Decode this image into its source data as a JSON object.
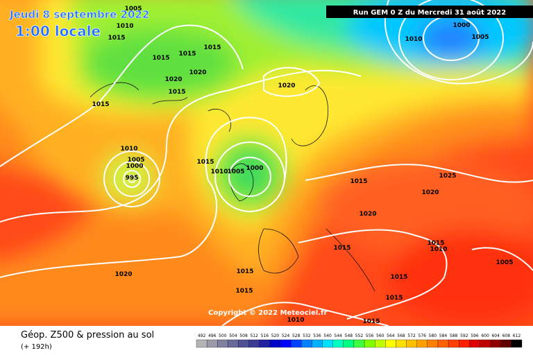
{
  "header": {
    "date": "Jeudi 8 septembre 2022",
    "time": "1:00 locale",
    "run": "Run GEM 0 Z du Mercredi 31 août 2022"
  },
  "map": {
    "isobar_labels": [
      1005,
      1010,
      1015,
      1015,
      1015,
      1015,
      1020,
      1020,
      1015,
      1015,
      1020,
      1010,
      1000,
      1005,
      1010,
      1005,
      1000,
      995,
      1015,
      1010,
      1005,
      1000,
      1015,
      1025,
      1020,
      1020,
      1015,
      1010,
      1015,
      1005,
      1020,
      1015,
      1015,
      1015,
      1015,
      1010,
      1015
    ],
    "copyright": "Copyright © 2022 Meteociel.fr"
  },
  "footer": {
    "title": "Géop. Z500 & pression au sol",
    "lead": "(+ 192h)",
    "colorbar": {
      "values": [
        492,
        496,
        500,
        504,
        508,
        512,
        516,
        520,
        524,
        528,
        532,
        536,
        540,
        544,
        548,
        552,
        556,
        560,
        564,
        568,
        572,
        576,
        580,
        584,
        588,
        592,
        596,
        600,
        604,
        608,
        612
      ],
      "colors": [
        "#b4b4b4",
        "#9a9aaa",
        "#8080a0",
        "#6a6a9a",
        "#505096",
        "#3c3c96",
        "#2020a0",
        "#0000c8",
        "#0000ff",
        "#0040ff",
        "#0080ff",
        "#00b0ff",
        "#00e0ff",
        "#00ffc0",
        "#00ff80",
        "#40ff40",
        "#80ff00",
        "#c0ff00",
        "#ffff00",
        "#ffe000",
        "#ffc000",
        "#ffa000",
        "#ff8000",
        "#ff6000",
        "#ff4000",
        "#ff2000",
        "#e00000",
        "#c00000",
        "#900000",
        "#600000",
        "#000000"
      ]
    }
  }
}
